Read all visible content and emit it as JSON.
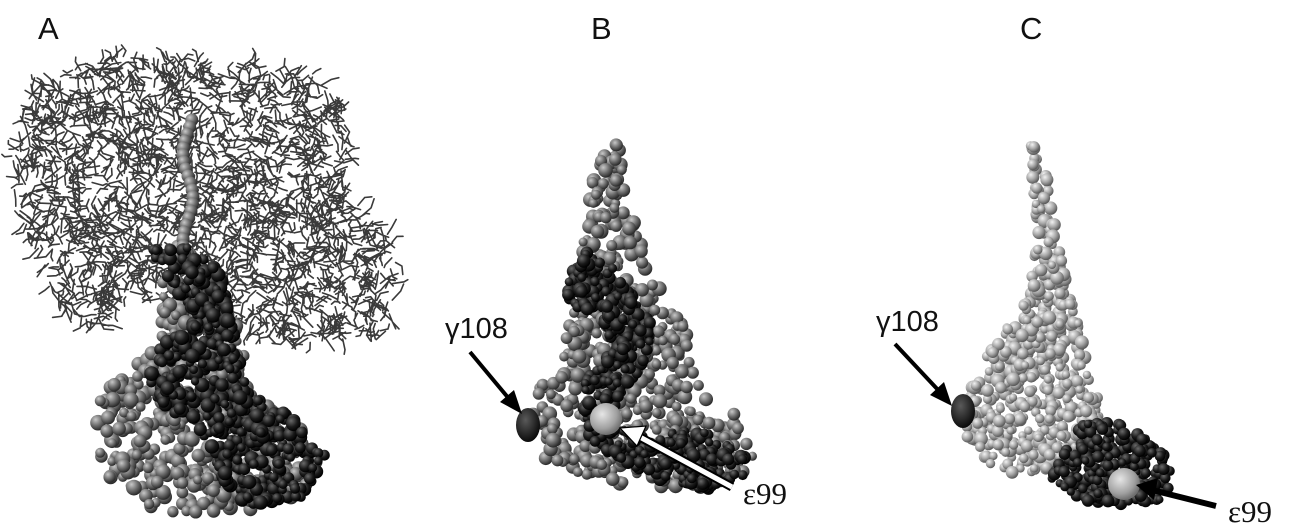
{
  "panels": [
    {
      "letter": "A"
    },
    {
      "letter": "B"
    },
    {
      "letter": "C"
    }
  ],
  "labels": {
    "b_gamma": "γ108",
    "b_epsilon": "ε99",
    "c_gamma": "γ108",
    "c_epsilon": "ε99"
  },
  "colors": {
    "background": "#ffffff",
    "dark_domain": "#161616",
    "mid_domain": "#6a6a6a",
    "light_domain": "#a8a8a8",
    "highlight_sphere": "#b0b0b0",
    "stick_network": "#3c3c3c"
  }
}
